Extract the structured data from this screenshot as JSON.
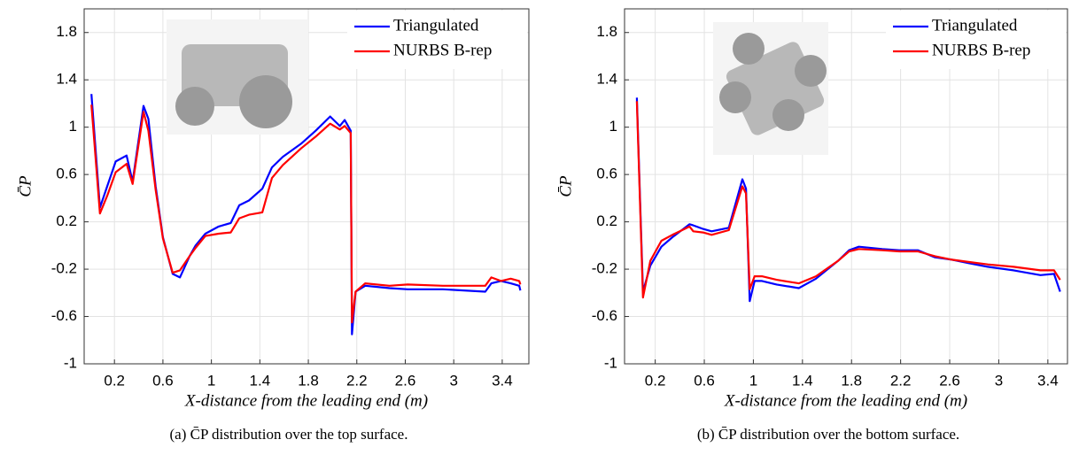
{
  "chart_data": [
    {
      "type": "line",
      "xlabel": "X-distance from the leading end (m)",
      "ylabel": "C̄P",
      "caption": "(a) C̄P distribution over the top surface.",
      "x": [
        0.01,
        0.08,
        0.14,
        0.21,
        0.3,
        0.35,
        0.44,
        0.48,
        0.54,
        0.6,
        0.68,
        0.74,
        0.82,
        0.87,
        0.95,
        1.06,
        1.16,
        1.23,
        1.31,
        1.42,
        1.5,
        1.59,
        1.74,
        1.86,
        1.98,
        2.06,
        2.1,
        2.15,
        2.16,
        2.19,
        2.27,
        2.47,
        2.62,
        2.91,
        3.26,
        3.31,
        3.39,
        3.47,
        3.54,
        3.55
      ],
      "series": [
        {
          "name": "Triangulated",
          "color": "#0000ff",
          "values": [
            1.28,
            0.32,
            0.5,
            0.71,
            0.76,
            0.54,
            1.18,
            1.07,
            0.5,
            0.07,
            -0.24,
            -0.27,
            -0.09,
            0.0,
            0.1,
            0.16,
            0.19,
            0.34,
            0.38,
            0.48,
            0.66,
            0.75,
            0.86,
            0.97,
            1.09,
            1.01,
            1.06,
            0.97,
            -0.75,
            -0.39,
            -0.34,
            -0.36,
            -0.37,
            -0.37,
            -0.39,
            -0.32,
            -0.3,
            -0.32,
            -0.34,
            -0.38
          ]
        },
        {
          "name": "NURBS B-rep",
          "color": "#ff0000",
          "values": [
            1.19,
            0.27,
            0.42,
            0.62,
            0.69,
            0.52,
            1.13,
            0.97,
            0.47,
            0.06,
            -0.23,
            -0.21,
            -0.09,
            -0.02,
            0.08,
            0.1,
            0.11,
            0.23,
            0.26,
            0.28,
            0.57,
            0.68,
            0.82,
            0.92,
            1.03,
            0.98,
            1.01,
            0.95,
            -0.65,
            -0.39,
            -0.32,
            -0.34,
            -0.33,
            -0.34,
            -0.34,
            -0.27,
            -0.3,
            -0.28,
            -0.3,
            -0.33
          ]
        }
      ],
      "xlim": [
        -0.05,
        3.62
      ],
      "xticks": [
        0.2,
        0.6,
        1,
        1.4,
        1.8,
        2.2,
        2.6,
        3,
        3.4
      ],
      "ylim": [
        -1,
        2
      ],
      "yticks": [
        -1,
        -0.6,
        -0.2,
        0.2,
        0.6,
        1,
        1.4,
        1.8
      ],
      "grid": true,
      "legend": "upper right"
    },
    {
      "type": "line",
      "xlabel": "X-distance from the leading end (m)",
      "ylabel": "C̄P",
      "caption": "(b) C̄P distribution over the bottom surface.",
      "x": [
        0.05,
        0.1,
        0.16,
        0.25,
        0.34,
        0.48,
        0.51,
        0.59,
        0.66,
        0.8,
        0.91,
        0.94,
        0.97,
        1.01,
        1.07,
        1.19,
        1.37,
        1.51,
        1.69,
        1.78,
        1.86,
        2.05,
        2.19,
        2.34,
        2.48,
        2.62,
        2.76,
        2.91,
        3.12,
        3.34,
        3.45,
        3.5
      ],
      "series": [
        {
          "name": "Triangulated",
          "color": "#0000ff",
          "values": [
            1.25,
            -0.39,
            -0.17,
            -0.01,
            0.07,
            0.18,
            0.17,
            0.14,
            0.12,
            0.15,
            0.56,
            0.48,
            -0.47,
            -0.3,
            -0.3,
            -0.33,
            -0.36,
            -0.28,
            -0.13,
            -0.04,
            -0.01,
            -0.03,
            -0.04,
            -0.04,
            -0.1,
            -0.12,
            -0.15,
            -0.18,
            -0.21,
            -0.25,
            -0.24,
            -0.39
          ]
        },
        {
          "name": "NURBS B-rep",
          "color": "#ff0000",
          "values": [
            1.22,
            -0.44,
            -0.13,
            0.04,
            0.09,
            0.16,
            0.12,
            0.11,
            0.09,
            0.13,
            0.5,
            0.44,
            -0.37,
            -0.26,
            -0.26,
            -0.29,
            -0.32,
            -0.26,
            -0.13,
            -0.05,
            -0.03,
            -0.04,
            -0.05,
            -0.05,
            -0.09,
            -0.12,
            -0.14,
            -0.16,
            -0.18,
            -0.21,
            -0.21,
            -0.29
          ]
        }
      ],
      "xlim": [
        -0.05,
        3.56
      ],
      "xticks": [
        0.2,
        0.6,
        1,
        1.4,
        1.8,
        2.2,
        2.6,
        3,
        3.4
      ],
      "ylim": [
        -1,
        2
      ],
      "yticks": [
        -1,
        -0.6,
        -0.2,
        0.2,
        0.6,
        1,
        1.4,
        1.8
      ],
      "grid": true,
      "legend": "upper right"
    }
  ]
}
